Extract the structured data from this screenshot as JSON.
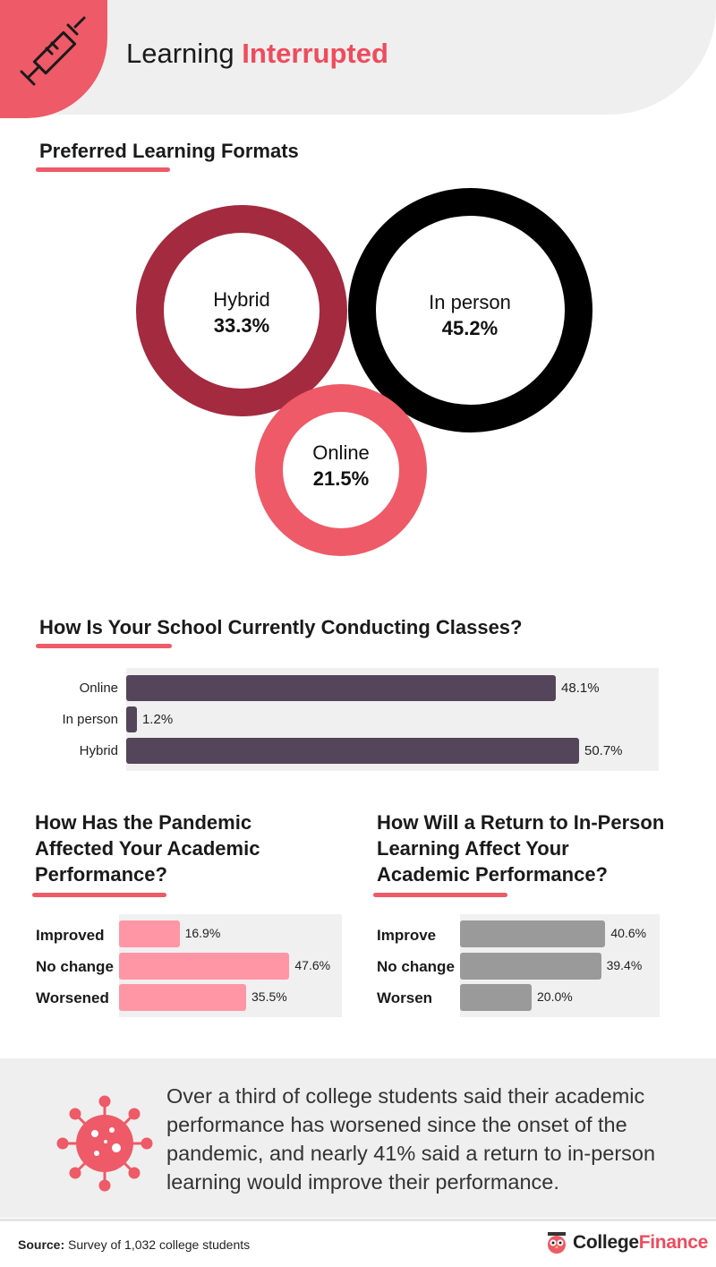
{
  "header": {
    "title_plain": "Learning",
    "title_accent": "Interrupted",
    "icon": "syringe-icon",
    "accent_color": "#ee4c5c"
  },
  "sections": {
    "formats_title": "Preferred Learning Formats",
    "classes_title": "How Is Your School Currently Conducting Classes?",
    "pandemic_title_lines": [
      "How Has the Pandemic",
      "Affected Your Academic",
      "Performance?"
    ],
    "return_title_lines": [
      "How Will a Return to In-Person",
      "Learning Affect Your",
      "Academic Performance?"
    ]
  },
  "chart_data": [
    {
      "type": "bubble",
      "title": "Preferred Learning Formats",
      "series": [
        {
          "name": "Hybrid",
          "value": 33.3,
          "label": "33.3%",
          "color": "#a42a3f"
        },
        {
          "name": "In person",
          "value": 45.2,
          "label": "45.2%",
          "color": "#000000"
        },
        {
          "name": "Online",
          "value": 21.5,
          "label": "21.5%",
          "color": "#ee5a67"
        }
      ]
    },
    {
      "type": "bar",
      "orientation": "horizontal",
      "title": "How Is Your School Currently Conducting Classes?",
      "categories": [
        "Online",
        "In person",
        "Hybrid"
      ],
      "values": [
        48.1,
        1.2,
        50.7
      ],
      "value_labels": [
        "48.1%",
        "1.2%",
        "50.7%"
      ],
      "xlim": [
        0,
        55
      ],
      "color": "#54455a"
    },
    {
      "type": "bar",
      "orientation": "horizontal",
      "title": "How Has the Pandemic Affected Your Academic Performance?",
      "categories": [
        "Improved",
        "No change",
        "Worsened"
      ],
      "values": [
        16.9,
        47.6,
        35.5
      ],
      "value_labels": [
        "16.9%",
        "47.6%",
        "35.5%"
      ],
      "xlim": [
        0,
        55
      ],
      "color": "#ff96a6"
    },
    {
      "type": "bar",
      "orientation": "horizontal",
      "title": "How Will a Return to In-Person Learning Affect Your Academic Performance?",
      "categories": [
        "Improve",
        "No change",
        "Worsen"
      ],
      "values": [
        40.6,
        39.4,
        20.0
      ],
      "value_labels": [
        "40.6%",
        "39.4%",
        "20.0%"
      ],
      "xlim": [
        0,
        55
      ],
      "color": "#9a9a9a"
    }
  ],
  "callout": {
    "icon": "virus-icon",
    "text": "Over a third of college students said their academic performance has worsened since the onset of the pandemic, and nearly 41% said a return to in-person learning would improve their performance."
  },
  "footer": {
    "source_label": "Source:",
    "source_text": " Survey of 1,032 college students",
    "brand_plain": "College",
    "brand_accent": "Finance",
    "brand_icon": "owl-logo-icon"
  }
}
